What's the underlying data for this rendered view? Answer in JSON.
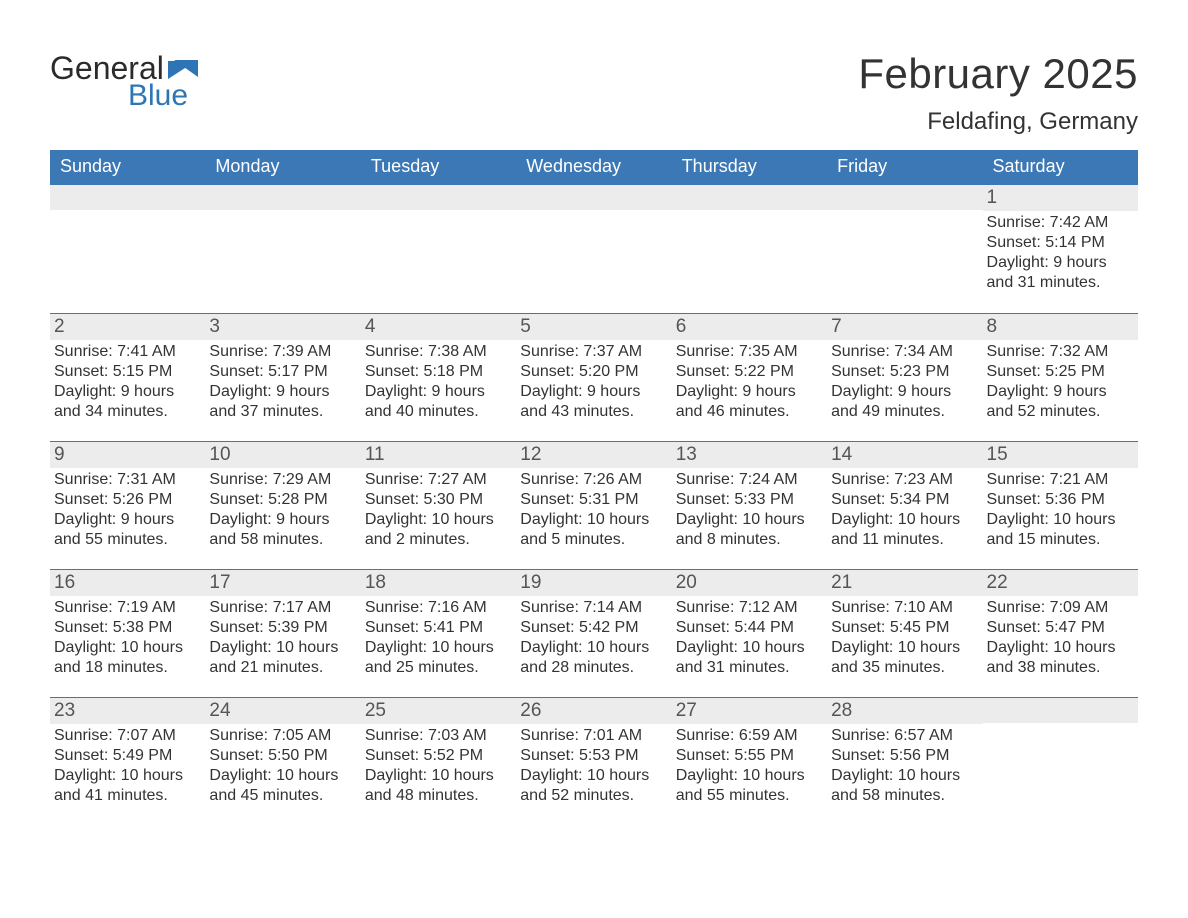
{
  "logo": {
    "word1": "General",
    "word2": "Blue"
  },
  "title": "February 2025",
  "location": "Feldafing, Germany",
  "colors": {
    "header_bg": "#3b78b5",
    "header_text": "#ffffff",
    "strip_bg": "#ececec",
    "rule": "#3b78b5",
    "text": "#333333",
    "logo_blue": "#2e75b6"
  },
  "daysOfWeek": [
    "Sunday",
    "Monday",
    "Tuesday",
    "Wednesday",
    "Thursday",
    "Friday",
    "Saturday"
  ],
  "weeks": [
    [
      {
        "n": "",
        "sunrise": "",
        "sunset": "",
        "daylight": ""
      },
      {
        "n": "",
        "sunrise": "",
        "sunset": "",
        "daylight": ""
      },
      {
        "n": "",
        "sunrise": "",
        "sunset": "",
        "daylight": ""
      },
      {
        "n": "",
        "sunrise": "",
        "sunset": "",
        "daylight": ""
      },
      {
        "n": "",
        "sunrise": "",
        "sunset": "",
        "daylight": ""
      },
      {
        "n": "",
        "sunrise": "",
        "sunset": "",
        "daylight": ""
      },
      {
        "n": "1",
        "sunrise": "Sunrise: 7:42 AM",
        "sunset": "Sunset: 5:14 PM",
        "daylight": "Daylight: 9 hours and 31 minutes."
      }
    ],
    [
      {
        "n": "2",
        "sunrise": "Sunrise: 7:41 AM",
        "sunset": "Sunset: 5:15 PM",
        "daylight": "Daylight: 9 hours and 34 minutes."
      },
      {
        "n": "3",
        "sunrise": "Sunrise: 7:39 AM",
        "sunset": "Sunset: 5:17 PM",
        "daylight": "Daylight: 9 hours and 37 minutes."
      },
      {
        "n": "4",
        "sunrise": "Sunrise: 7:38 AM",
        "sunset": "Sunset: 5:18 PM",
        "daylight": "Daylight: 9 hours and 40 minutes."
      },
      {
        "n": "5",
        "sunrise": "Sunrise: 7:37 AM",
        "sunset": "Sunset: 5:20 PM",
        "daylight": "Daylight: 9 hours and 43 minutes."
      },
      {
        "n": "6",
        "sunrise": "Sunrise: 7:35 AM",
        "sunset": "Sunset: 5:22 PM",
        "daylight": "Daylight: 9 hours and 46 minutes."
      },
      {
        "n": "7",
        "sunrise": "Sunrise: 7:34 AM",
        "sunset": "Sunset: 5:23 PM",
        "daylight": "Daylight: 9 hours and 49 minutes."
      },
      {
        "n": "8",
        "sunrise": "Sunrise: 7:32 AM",
        "sunset": "Sunset: 5:25 PM",
        "daylight": "Daylight: 9 hours and 52 minutes."
      }
    ],
    [
      {
        "n": "9",
        "sunrise": "Sunrise: 7:31 AM",
        "sunset": "Sunset: 5:26 PM",
        "daylight": "Daylight: 9 hours and 55 minutes."
      },
      {
        "n": "10",
        "sunrise": "Sunrise: 7:29 AM",
        "sunset": "Sunset: 5:28 PM",
        "daylight": "Daylight: 9 hours and 58 minutes."
      },
      {
        "n": "11",
        "sunrise": "Sunrise: 7:27 AM",
        "sunset": "Sunset: 5:30 PM",
        "daylight": "Daylight: 10 hours and 2 minutes."
      },
      {
        "n": "12",
        "sunrise": "Sunrise: 7:26 AM",
        "sunset": "Sunset: 5:31 PM",
        "daylight": "Daylight: 10 hours and 5 minutes."
      },
      {
        "n": "13",
        "sunrise": "Sunrise: 7:24 AM",
        "sunset": "Sunset: 5:33 PM",
        "daylight": "Daylight: 10 hours and 8 minutes."
      },
      {
        "n": "14",
        "sunrise": "Sunrise: 7:23 AM",
        "sunset": "Sunset: 5:34 PM",
        "daylight": "Daylight: 10 hours and 11 minutes."
      },
      {
        "n": "15",
        "sunrise": "Sunrise: 7:21 AM",
        "sunset": "Sunset: 5:36 PM",
        "daylight": "Daylight: 10 hours and 15 minutes."
      }
    ],
    [
      {
        "n": "16",
        "sunrise": "Sunrise: 7:19 AM",
        "sunset": "Sunset: 5:38 PM",
        "daylight": "Daylight: 10 hours and 18 minutes."
      },
      {
        "n": "17",
        "sunrise": "Sunrise: 7:17 AM",
        "sunset": "Sunset: 5:39 PM",
        "daylight": "Daylight: 10 hours and 21 minutes."
      },
      {
        "n": "18",
        "sunrise": "Sunrise: 7:16 AM",
        "sunset": "Sunset: 5:41 PM",
        "daylight": "Daylight: 10 hours and 25 minutes."
      },
      {
        "n": "19",
        "sunrise": "Sunrise: 7:14 AM",
        "sunset": "Sunset: 5:42 PM",
        "daylight": "Daylight: 10 hours and 28 minutes."
      },
      {
        "n": "20",
        "sunrise": "Sunrise: 7:12 AM",
        "sunset": "Sunset: 5:44 PM",
        "daylight": "Daylight: 10 hours and 31 minutes."
      },
      {
        "n": "21",
        "sunrise": "Sunrise: 7:10 AM",
        "sunset": "Sunset: 5:45 PM",
        "daylight": "Daylight: 10 hours and 35 minutes."
      },
      {
        "n": "22",
        "sunrise": "Sunrise: 7:09 AM",
        "sunset": "Sunset: 5:47 PM",
        "daylight": "Daylight: 10 hours and 38 minutes."
      }
    ],
    [
      {
        "n": "23",
        "sunrise": "Sunrise: 7:07 AM",
        "sunset": "Sunset: 5:49 PM",
        "daylight": "Daylight: 10 hours and 41 minutes."
      },
      {
        "n": "24",
        "sunrise": "Sunrise: 7:05 AM",
        "sunset": "Sunset: 5:50 PM",
        "daylight": "Daylight: 10 hours and 45 minutes."
      },
      {
        "n": "25",
        "sunrise": "Sunrise: 7:03 AM",
        "sunset": "Sunset: 5:52 PM",
        "daylight": "Daylight: 10 hours and 48 minutes."
      },
      {
        "n": "26",
        "sunrise": "Sunrise: 7:01 AM",
        "sunset": "Sunset: 5:53 PM",
        "daylight": "Daylight: 10 hours and 52 minutes."
      },
      {
        "n": "27",
        "sunrise": "Sunrise: 6:59 AM",
        "sunset": "Sunset: 5:55 PM",
        "daylight": "Daylight: 10 hours and 55 minutes."
      },
      {
        "n": "28",
        "sunrise": "Sunrise: 6:57 AM",
        "sunset": "Sunset: 5:56 PM",
        "daylight": "Daylight: 10 hours and 58 minutes."
      },
      {
        "n": "",
        "sunrise": "",
        "sunset": "",
        "daylight": ""
      }
    ]
  ]
}
